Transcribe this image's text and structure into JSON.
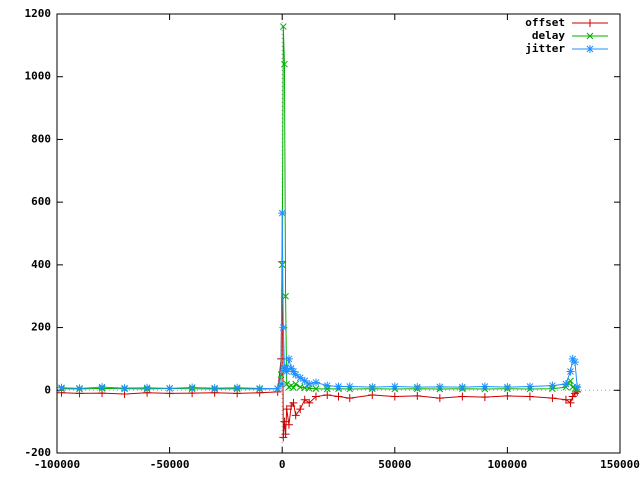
{
  "chart_data": {
    "type": "line",
    "x": [
      -98000,
      -90000,
      -80000,
      -70000,
      -60000,
      -50000,
      -40000,
      -30000,
      -20000,
      -10000,
      -2000,
      -500,
      0,
      500,
      1000,
      1500,
      2000,
      3000,
      4000,
      5000,
      6000,
      8000,
      10000,
      12000,
      15000,
      20000,
      25000,
      30000,
      40000,
      50000,
      60000,
      70000,
      80000,
      90000,
      100000,
      110000,
      120000,
      126000,
      128000,
      129000,
      130000,
      131000
    ],
    "series": [
      {
        "name": "offset",
        "color": "#cc0000",
        "marker": "plus",
        "values": [
          -8,
          -10,
          -9,
          -12,
          -8,
          -10,
          -9,
          -8,
          -10,
          -8,
          -5,
          100,
          410,
          -150,
          -100,
          -140,
          -60,
          -110,
          -50,
          -40,
          -80,
          -60,
          -30,
          -40,
          -20,
          -15,
          -20,
          -25,
          -15,
          -20,
          -18,
          -25,
          -20,
          -22,
          -18,
          -20,
          -25,
          -30,
          -40,
          -20,
          -10,
          -5
        ]
      },
      {
        "name": "delay",
        "color": "#00b000",
        "marker": "cross",
        "values": [
          5,
          4,
          6,
          5,
          4,
          6,
          5,
          4,
          5,
          4,
          5,
          50,
          400,
          1160,
          1040,
          300,
          20,
          10,
          15,
          8,
          20,
          10,
          8,
          6,
          5,
          4,
          5,
          4,
          5,
          4,
          5,
          4,
          5,
          4,
          5,
          4,
          5,
          10,
          30,
          10,
          5,
          4
        ]
      },
      {
        "name": "jitter",
        "color": "#1e90ff",
        "marker": "star",
        "values": [
          8,
          6,
          10,
          7,
          8,
          6,
          9,
          7,
          8,
          6,
          5,
          20,
          565,
          200,
          70,
          70,
          60,
          100,
          70,
          60,
          50,
          40,
          30,
          20,
          25,
          15,
          12,
          12,
          10,
          12,
          10,
          11,
          10,
          12,
          10,
          12,
          15,
          20,
          60,
          100,
          90,
          10
        ]
      }
    ],
    "xlim": [
      -100000,
      150000
    ],
    "xticks": [
      -100000,
      -50000,
      0,
      50000,
      100000,
      150000
    ],
    "ylim": [
      -200,
      1200
    ],
    "yticks": [
      -200,
      0,
      200,
      400,
      600,
      800,
      1000,
      1200
    ],
    "zero_axes": true,
    "legend": "top-right"
  }
}
